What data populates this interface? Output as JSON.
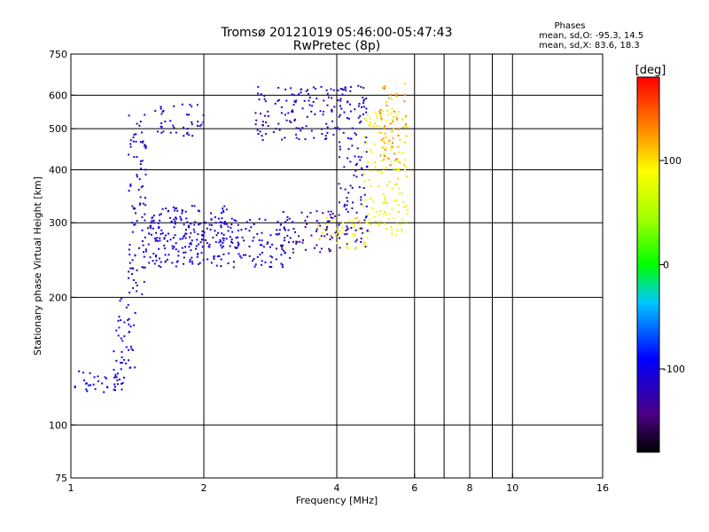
{
  "header": {
    "title_line1": "Tromsø 20121019 05:46:00-05:47:43",
    "title_line2": "RwPretec (8p)",
    "stats_title": "Phases",
    "stats_line1": "mean, sd,O: -95.3, 14.5",
    "stats_line2": "mean, sd,X:  83.6, 18.3"
  },
  "chart_data": {
    "type": "scatter",
    "xlabel": "Frequency [MHz]",
    "ylabel": "Stationary phase Virtual Height [km]",
    "xscale": "log",
    "yscale": "log",
    "xlim": [
      1,
      16
    ],
    "ylim": [
      75,
      750
    ],
    "x_ticks": [
      1,
      2,
      4,
      6,
      8,
      10,
      16
    ],
    "x_tick_labels": [
      "1",
      "2",
      "4",
      "6",
      "8",
      "10",
      "16"
    ],
    "x_gridlines": [
      2,
      4,
      6,
      7,
      8,
      9,
      10
    ],
    "y_ticks": [
      75,
      100,
      200,
      300,
      400,
      500,
      600,
      750
    ],
    "y_tick_labels": [
      "75",
      "100",
      "200",
      "300",
      "400",
      "500",
      "600",
      "750"
    ],
    "y_gridlines": [
      100,
      200,
      300,
      400,
      500,
      600
    ],
    "grid": true,
    "colorbar": {
      "label": "[deg]",
      "range": [
        -180,
        180
      ],
      "ticks": [
        100,
        0,
        -100
      ],
      "tick_labels": [
        "100",
        "0",
        "-100"
      ]
    },
    "series": [
      {
        "mode": "O",
        "mean_phase": -95.3,
        "regions": [
          {
            "x": [
              1.02,
              1.32
            ],
            "y": [
              118,
              135
            ],
            "phase": -100
          },
          {
            "x": [
              1.25,
              1.4
            ],
            "y": [
              135,
              200
            ],
            "phase": -100
          },
          {
            "x": [
              1.35,
              1.48
            ],
            "y": [
              200,
              560
            ],
            "phase": -115
          },
          {
            "x": [
              1.45,
              3.2
            ],
            "y": [
              235,
              310
            ],
            "phase": -110
          },
          {
            "x": [
              1.5,
              2.4
            ],
            "y": [
              240,
              330
            ],
            "phase": -105
          },
          {
            "x": [
              1.55,
              2.0
            ],
            "y": [
              480,
              575
            ],
            "phase": -110
          },
          {
            "x": [
              2.6,
              4.0
            ],
            "y": [
              470,
              630
            ],
            "phase": -115
          },
          {
            "x": [
              3.0,
              4.2
            ],
            "y": [
              255,
              320
            ],
            "phase": -130
          },
          {
            "x": [
              4.0,
              4.7
            ],
            "y": [
              260,
              640
            ],
            "phase": -115
          }
        ]
      },
      {
        "mode": "X",
        "mean_phase": 83.6,
        "regions": [
          {
            "x": [
              3.6,
              4.8
            ],
            "y": [
              260,
              310
            ],
            "phase": 90
          },
          {
            "x": [
              4.6,
              5.8
            ],
            "y": [
              280,
              560
            ],
            "phase": 85
          },
          {
            "x": [
              5.0,
              5.8
            ],
            "y": [
              400,
              640
            ],
            "phase": 120
          }
        ]
      }
    ]
  }
}
